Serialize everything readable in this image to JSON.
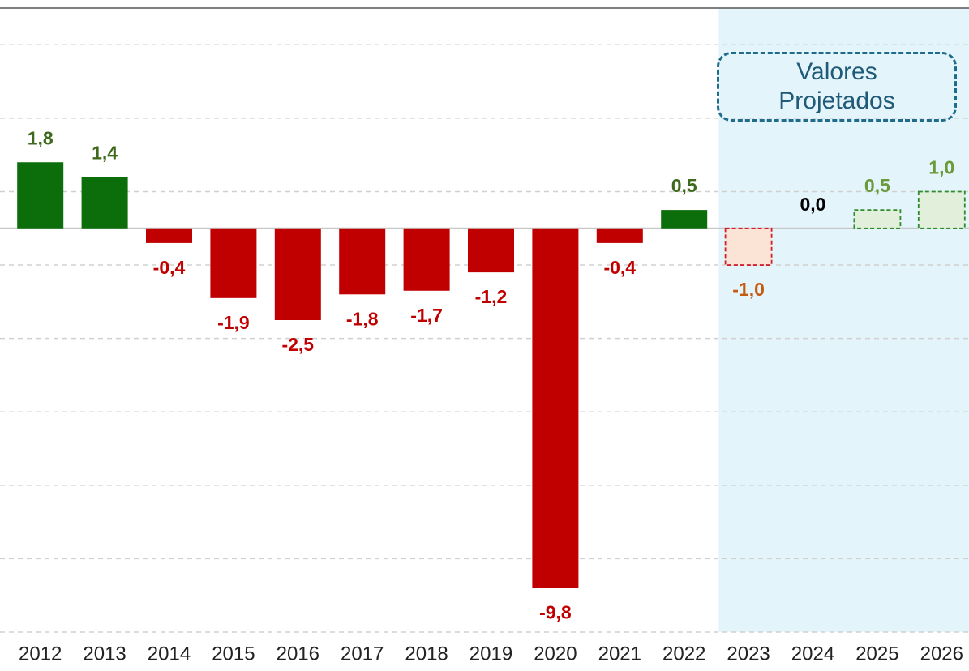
{
  "chart_data": {
    "type": "bar",
    "categories": [
      "2012",
      "2013",
      "2014",
      "2015",
      "2016",
      "2017",
      "2018",
      "2019",
      "2020",
      "2021",
      "2022",
      "2023",
      "2024",
      "2025",
      "2026"
    ],
    "values": [
      1.8,
      1.4,
      -0.4,
      -1.9,
      -2.5,
      -1.8,
      -1.7,
      -1.2,
      -9.8,
      -0.4,
      0.5,
      -1.0,
      0.0,
      0.5,
      1.0
    ],
    "value_labels": [
      "1,8",
      "1,4",
      "-0,4",
      "-1,9",
      "-2,5",
      "-1,8",
      "-1,7",
      "-1,2",
      "-9,8",
      "-0,4",
      "0,5",
      "-1,0",
      "0,0",
      "0,5",
      "1,0"
    ],
    "bar_colors": [
      "#0b6e0b",
      "#0b6e0b",
      "#c00000",
      "#c00000",
      "#c00000",
      "#c00000",
      "#c00000",
      "#c00000",
      "#c00000",
      "#c00000",
      "#0b6e0b",
      "#fbe3d6",
      "#e2efda",
      "#e2efda",
      "#e2efda"
    ],
    "bar_outlines": [
      null,
      null,
      null,
      null,
      null,
      null,
      null,
      null,
      null,
      null,
      null,
      "#d0202a",
      "#2e8b2e",
      "#2e8b2e",
      "#2e8b2e"
    ],
    "label_colors": [
      "#3f6a1d",
      "#3f6a1d",
      "#c00000",
      "#c00000",
      "#c00000",
      "#c00000",
      "#c00000",
      "#c00000",
      "#c00000",
      "#c00000",
      "#3f6a1d",
      "#c55a11",
      "#000000",
      "#6a9a3a",
      "#6a9a3a"
    ],
    "shaded_from": "2023",
    "shade_color": "#e4f4fb",
    "annotation": "Valores Projetados",
    "ylim": [
      -11,
      6
    ],
    "yticks": [
      -11,
      -9,
      -7,
      -5,
      -3,
      -1,
      1,
      3,
      5
    ],
    "grid": true
  }
}
